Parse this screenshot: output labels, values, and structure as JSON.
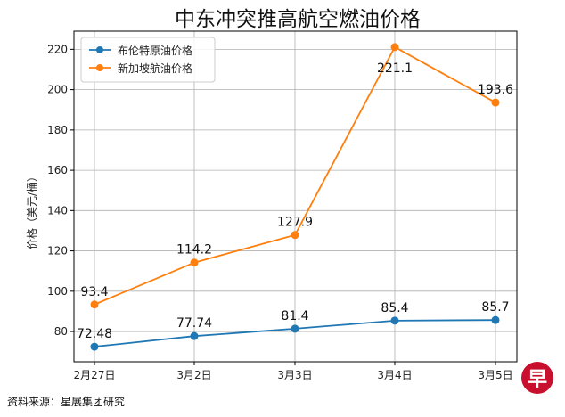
{
  "chart_data": {
    "type": "line",
    "title": "中东冲突推高航空燃油价格",
    "xlabel": "",
    "ylabel": "价格（美元/桶）",
    "categories": [
      "2月27日",
      "3月2日",
      "3月3日",
      "3月4日",
      "3月5日"
    ],
    "ylim": [
      65,
      229
    ],
    "yticks": [
      80,
      100,
      120,
      140,
      160,
      180,
      200,
      220
    ],
    "grid": true,
    "legend_position": "top-left",
    "series": [
      {
        "name": "布伦特原油价格",
        "color": "#1f77b4",
        "values": [
          72.48,
          77.74,
          81.4,
          85.4,
          85.7
        ],
        "labels": [
          "72.48",
          "77.74",
          "81.4",
          "85.4",
          "85.7"
        ]
      },
      {
        "name": "新加坡航油价格",
        "color": "#ff7f0e",
        "values": [
          93.4,
          114.2,
          127.9,
          221.1,
          193.6
        ],
        "labels": [
          "93.4",
          "114.2",
          "127.9",
          "221.1",
          "193.6"
        ]
      }
    ]
  },
  "source": "资料来源：星展集团研究",
  "logo": {
    "text": "早",
    "color": "#c8102e"
  }
}
